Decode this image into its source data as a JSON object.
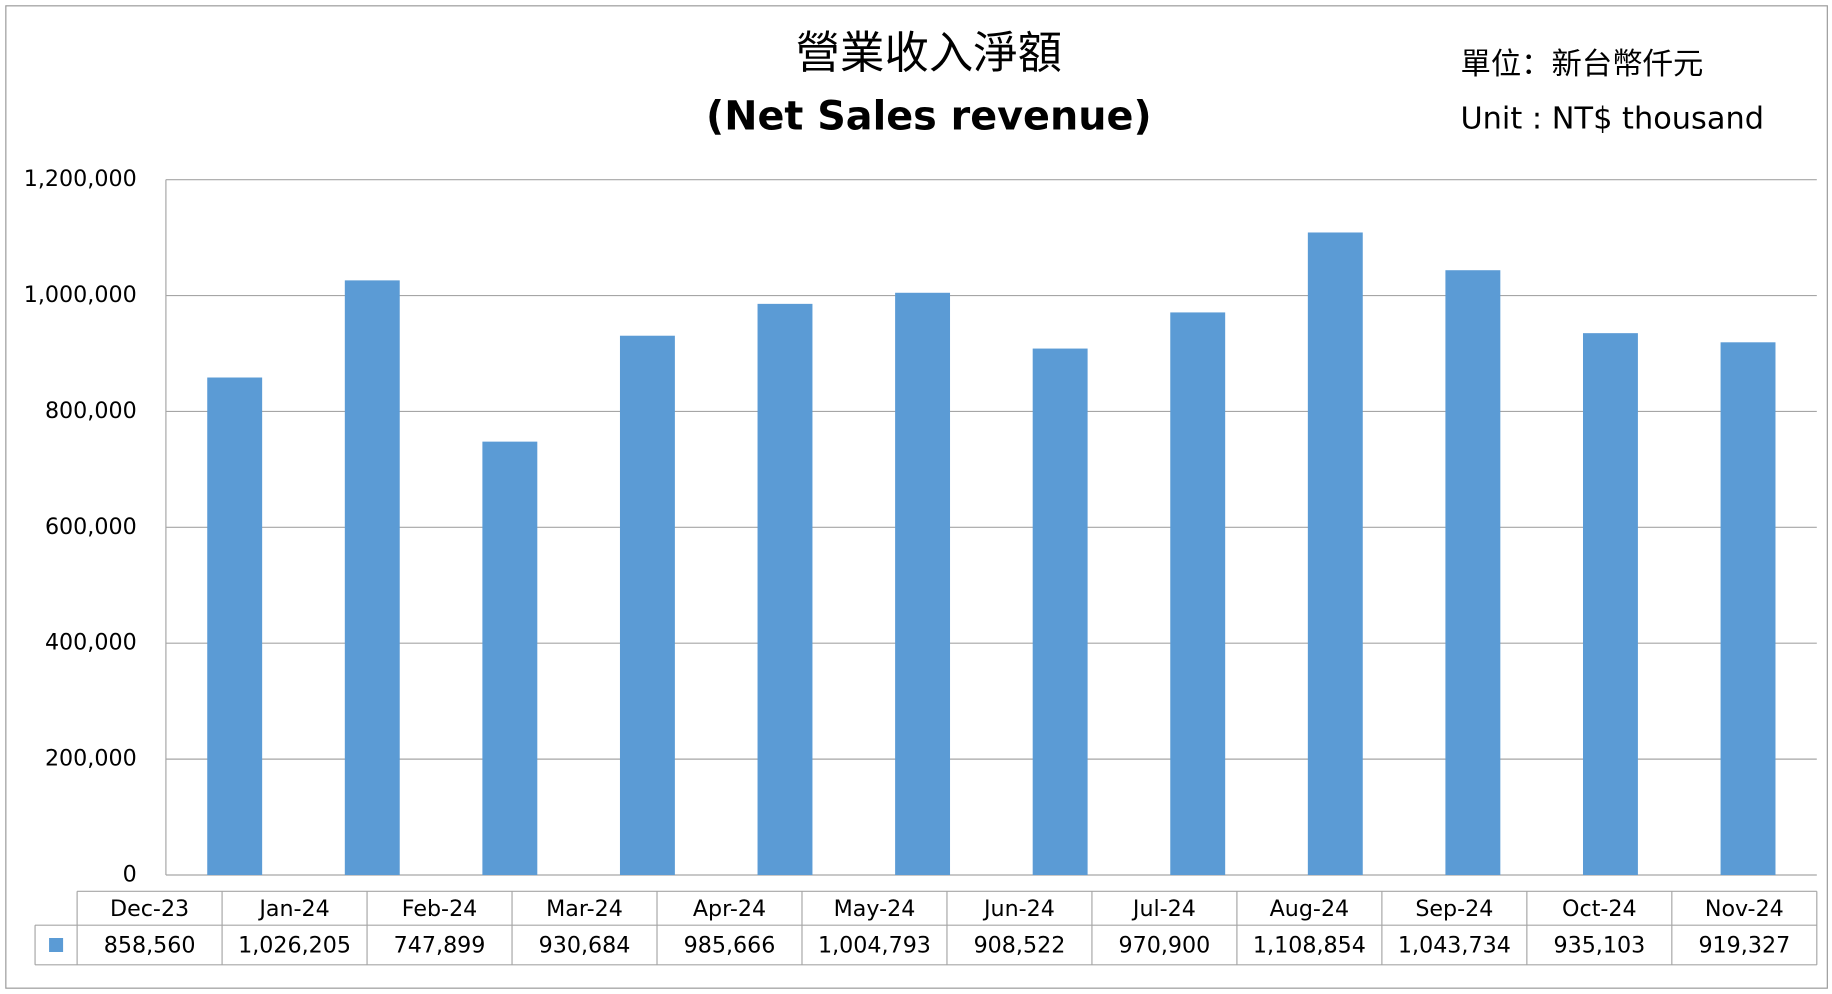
{
  "chart_data": {
    "type": "bar",
    "title": "營業收入淨額",
    "subtitle": "(Net Sales revenue)",
    "annotations": [
      "單位：新台幣仟元",
      "Unit : NT$ thousand"
    ],
    "categories": [
      "Dec-23",
      "Jan-24",
      "Feb-24",
      "Mar-24",
      "Apr-24",
      "May-24",
      "Jun-24",
      "Jul-24",
      "Aug-24",
      "Sep-24",
      "Oct-24",
      "Nov-24"
    ],
    "values": [
      858560,
      1026205,
      747899,
      930684,
      985666,
      1004793,
      908522,
      970900,
      1108854,
      1043734,
      935103,
      919327
    ],
    "value_labels": [
      "858,560",
      "1,026,205",
      "747,899",
      "930,684",
      "985,666",
      "1,004,793",
      "908,522",
      "970,900",
      "1,108,854",
      "1,043,734",
      "935,103",
      "919,327"
    ],
    "color": "#5b9bd5",
    "ylim": [
      0,
      1200000
    ],
    "yticks": [
      0,
      {
        "value": 200000,
        "label": "200,000"
      },
      {
        "value": 400000,
        "label": "400,000"
      },
      {
        "value": 600000,
        "label": "600,000"
      },
      {
        "value": 800000,
        "label": "800,000"
      },
      {
        "value": 1000000,
        "label": "1,000,000"
      },
      {
        "value": 1200000,
        "label": "1,200,000"
      }
    ],
    "grid": true
  }
}
